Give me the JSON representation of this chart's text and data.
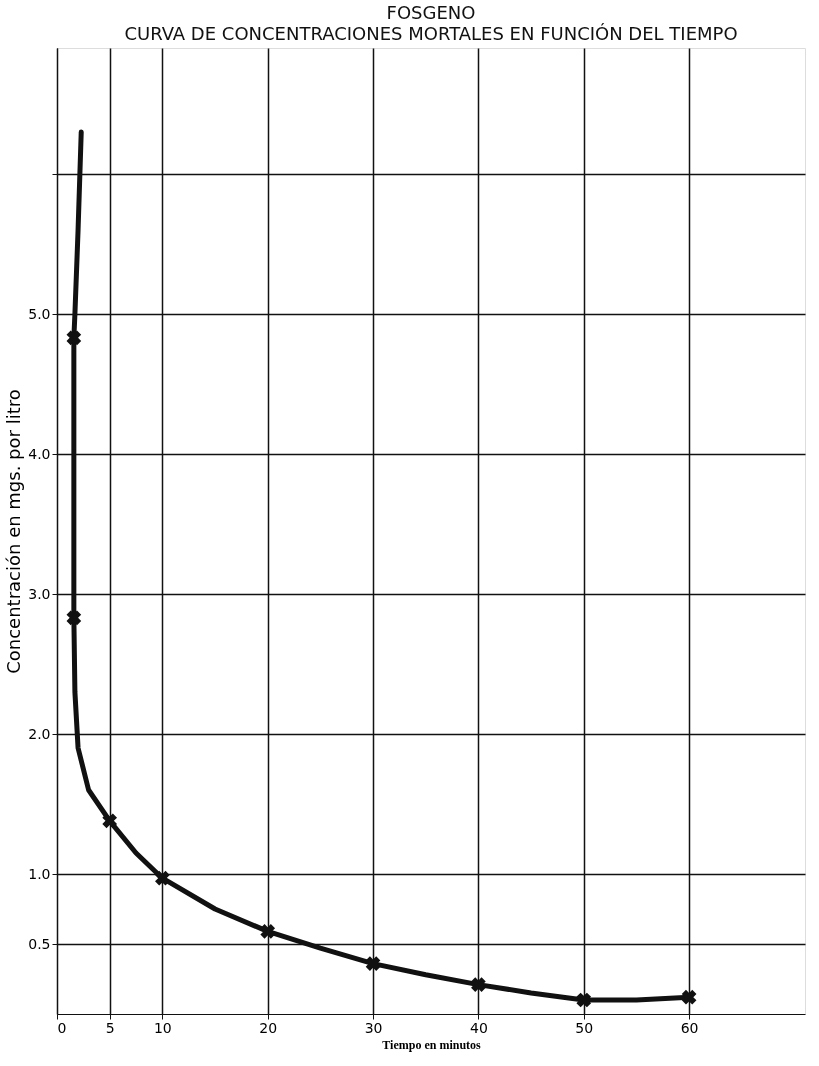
{
  "chart_data": {
    "type": "line",
    "title": "FOSGENO",
    "subtitle": "CURVA DE CONCENTRACIONES MORTALES EN FUNCIÓN DEL TIEMPO",
    "xlabel": "Tiempo en minutos",
    "ylabel": "Concentración en mgs. por litro",
    "xlim": [
      0,
      71
    ],
    "ylim": [
      0,
      6.9
    ],
    "xticks": [
      0,
      5,
      10,
      20,
      30,
      40,
      50,
      60
    ],
    "yticks": [
      {
        "value": 0.5,
        "label": "0.5"
      },
      {
        "value": 1,
        "label": "1.0"
      },
      {
        "value": 2,
        "label": "2.0"
      },
      {
        "value": 3,
        "label": "3.0"
      },
      {
        "value": 4,
        "label": "4.0"
      },
      {
        "value": 5,
        "label": "5.0"
      },
      {
        "value": 6,
        "label": null
      }
    ],
    "grid": true,
    "series": [
      {
        "color": "#111111",
        "marker": "none",
        "line_style": "solid",
        "x": [
          2.3,
          2.0,
          1.7,
          1.6,
          1.6,
          1.7,
          2.0,
          3.0,
          5,
          7.5,
          10,
          15,
          20,
          25,
          30,
          35,
          40,
          45,
          50,
          55,
          60
        ],
        "values": [
          6.3,
          5.6,
          5.0,
          4.83,
          2.83,
          2.3,
          1.9,
          1.6,
          1.38,
          1.15,
          0.97,
          0.75,
          0.59,
          0.47,
          0.36,
          0.28,
          0.21,
          0.15,
          0.1,
          0.1,
          0.12
        ]
      },
      {
        "type": "scatter",
        "color": "#111111",
        "marker": "cross",
        "x": [
          1.6,
          1.6,
          5,
          10,
          20,
          30,
          40,
          50,
          60
        ],
        "values": [
          4.83,
          2.83,
          1.38,
          0.97,
          0.59,
          0.36,
          0.21,
          0.1,
          0.12
        ]
      }
    ]
  }
}
